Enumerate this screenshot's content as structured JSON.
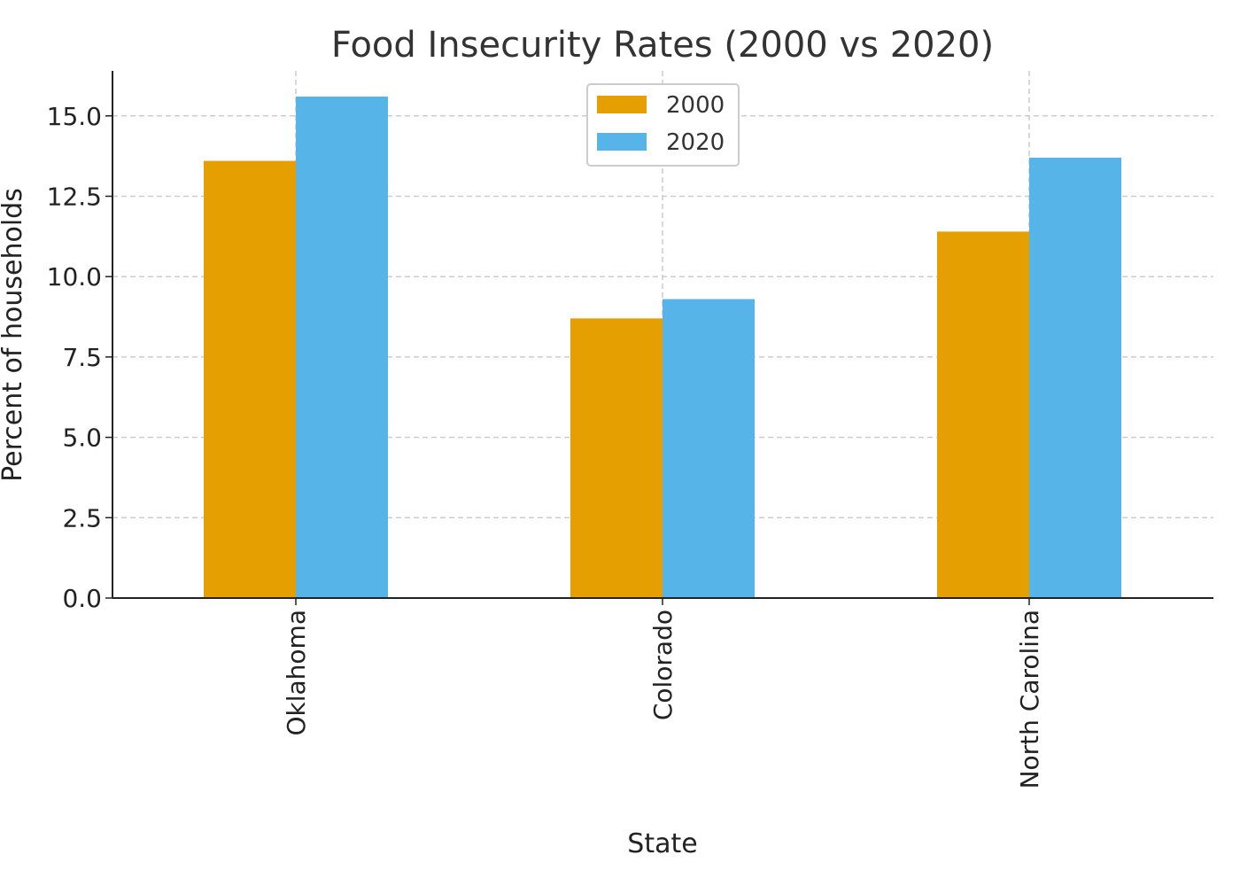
{
  "chart_data": {
    "type": "bar",
    "title": "Food Insecurity Rates (2000 vs 2020)",
    "xlabel": "State",
    "ylabel": "Percent of households",
    "categories": [
      "Oklahoma",
      "Colorado",
      "North Carolina"
    ],
    "series": [
      {
        "name": "2000",
        "color": "#E69F00",
        "values": [
          13.6,
          8.7,
          11.4
        ]
      },
      {
        "name": "2020",
        "color": "#56B4E9",
        "values": [
          15.6,
          9.3,
          13.7
        ]
      }
    ],
    "ylim": [
      0,
      16.4
    ],
    "yticks": [
      "0.0",
      "2.5",
      "5.0",
      "7.5",
      "10.0",
      "12.5",
      "15.0"
    ],
    "grid": true,
    "legend_position": "top-center"
  }
}
